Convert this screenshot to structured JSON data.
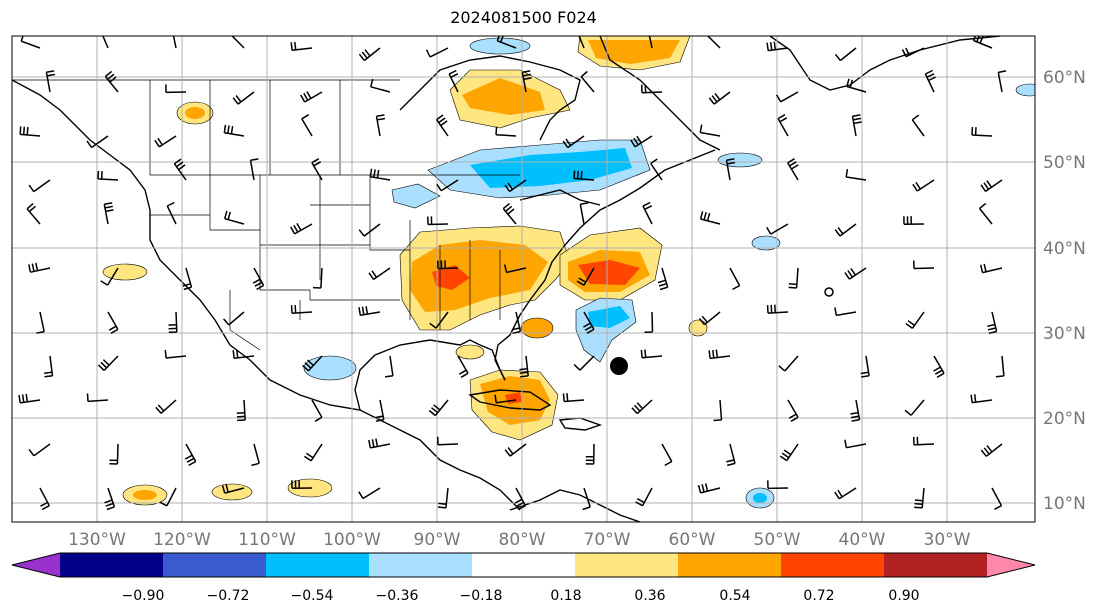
{
  "map": {
    "title": "2024081500 F024",
    "lat_labels": [
      "60°N",
      "50°N",
      "40°N",
      "30°N",
      "20°N",
      "10°N"
    ],
    "lon_labels": [
      "130°W",
      "120°W",
      "110°W",
      "100°W",
      "90°W",
      "80°W",
      "70°W",
      "60°W",
      "50°W",
      "40°W",
      "30°W"
    ],
    "colors": {
      "land_line": "#000000",
      "grid": "#b0b0b0",
      "axis_label": "#777777"
    }
  },
  "colorbar": {
    "ticks": [
      "−0.90",
      "−0.72",
      "−0.54",
      "−0.36",
      "−0.18",
      "0.18",
      "0.36",
      "0.54",
      "0.72",
      "0.90"
    ],
    "colors": [
      "#9932cc",
      "#00008b",
      "#3a5bd0",
      "#00bfff",
      "#aadfff",
      "#ffffff",
      "#ffe680",
      "#ffa500",
      "#ff4500",
      "#b22222",
      "#ff88aa"
    ]
  }
}
